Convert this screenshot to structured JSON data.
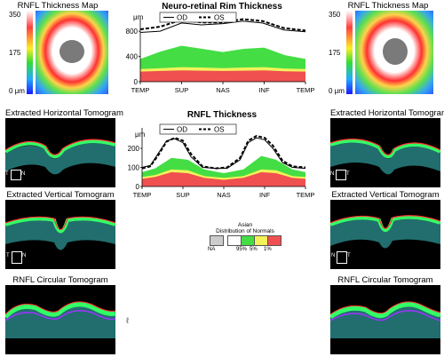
{
  "left": {
    "map_title": "RNFL Thickness Map",
    "scale": {
      "max": "350",
      "mid": "175",
      "min": "0 μm"
    },
    "horiz_title": "Extracted Horizontal Tomogram",
    "vert_title": "Extracted Vertical Tomogram",
    "circ_title": "RNFL Circular Tomogram",
    "horiz_marks": [
      "T",
      "N"
    ],
    "vert_marks": [
      "T",
      "N"
    ]
  },
  "right": {
    "map_title": "RNFL Thickness Map",
    "scale": {
      "max": "350",
      "mid": "175",
      "min": "0 μm"
    },
    "horiz_title": "Extracted Horizontal Tomogram",
    "vert_title": "Extracted Vertical Tomogram",
    "circ_title": "RNFL Circular Tomogram",
    "horiz_marks": [
      "N",
      "T"
    ],
    "vert_marks": [
      "N",
      "T"
    ]
  },
  "colors": {
    "red": "#f05050",
    "green": "#44dd44",
    "yellow": "#f2f25a",
    "lightgreen": "#b8f4b8",
    "grey": "#cccccc"
  },
  "chart_data": [
    {
      "type": "area",
      "title": "Neuro-retinal Rim Thickness",
      "ylabel": "μm",
      "ylim": [
        0,
        900
      ],
      "yticks": [
        "800",
        "400",
        "0"
      ],
      "x_ticks": [
        "TEMP",
        "SUP",
        "NAS",
        "INF",
        "TEMP"
      ],
      "legend": [
        "OD",
        "OS"
      ],
      "bands": {
        "x": [
          0,
          0.125,
          0.25,
          0.375,
          0.5,
          0.625,
          0.75,
          0.875,
          1
        ],
        "red": [
          160,
          170,
          180,
          175,
          170,
          175,
          180,
          165,
          160
        ],
        "yellow": [
          200,
          215,
          230,
          225,
          215,
          225,
          230,
          210,
          200
        ],
        "green": [
          360,
          480,
          570,
          520,
          470,
          520,
          540,
          420,
          360
        ]
      },
      "series": [
        {
          "name": "OD",
          "x": [
            0,
            0.12,
            0.25,
            0.37,
            0.5,
            0.62,
            0.74,
            0.87,
            1
          ],
          "values": [
            780,
            800,
            930,
            900,
            920,
            960,
            930,
            820,
            790
          ]
        },
        {
          "name": "OS",
          "x": [
            0,
            0.12,
            0.25,
            0.37,
            0.5,
            0.62,
            0.74,
            0.87,
            1
          ],
          "values": [
            830,
            870,
            980,
            940,
            940,
            990,
            960,
            850,
            810
          ]
        }
      ]
    },
    {
      "type": "area",
      "title": "RNFL Thickness",
      "ylabel": "μm",
      "ylim": [
        0,
        270
      ],
      "yticks": [
        "200",
        "100",
        "0"
      ],
      "x_ticks": [
        "TEMP",
        "SUP",
        "NAS",
        "INF",
        "TEMP"
      ],
      "legend": [
        "OD",
        "OS"
      ],
      "bands": {
        "x": [
          0,
          0.08,
          0.18,
          0.28,
          0.38,
          0.5,
          0.62,
          0.73,
          0.82,
          0.92,
          1
        ],
        "red": [
          40,
          50,
          75,
          70,
          45,
          35,
          45,
          75,
          70,
          45,
          40
        ],
        "yellow": [
          50,
          60,
          90,
          85,
          55,
          45,
          55,
          90,
          85,
          55,
          50
        ],
        "green": [
          75,
          95,
          150,
          140,
          90,
          70,
          90,
          160,
          140,
          90,
          75
        ]
      },
      "series": [
        {
          "name": "OD",
          "x": [
            0,
            0.05,
            0.1,
            0.15,
            0.2,
            0.25,
            0.3,
            0.37,
            0.45,
            0.52,
            0.6,
            0.65,
            0.7,
            0.75,
            0.8,
            0.86,
            0.92,
            1
          ],
          "values": [
            100,
            110,
            175,
            240,
            250,
            230,
            155,
            100,
            95,
            95,
            140,
            230,
            255,
            245,
            200,
            125,
            100,
            95
          ]
        },
        {
          "name": "OS",
          "x": [
            0,
            0.05,
            0.1,
            0.15,
            0.2,
            0.25,
            0.3,
            0.37,
            0.45,
            0.52,
            0.6,
            0.65,
            0.7,
            0.75,
            0.8,
            0.86,
            0.92,
            1
          ],
          "values": [
            95,
            105,
            165,
            235,
            255,
            240,
            170,
            105,
            95,
            100,
            150,
            240,
            265,
            255,
            215,
            135,
            105,
            100
          ]
        }
      ]
    }
  ],
  "normals": {
    "title_line1": "Asian",
    "title_line2": "Distribution of Normals",
    "items": [
      "NA",
      "95%",
      "5%",
      "1%"
    ]
  }
}
